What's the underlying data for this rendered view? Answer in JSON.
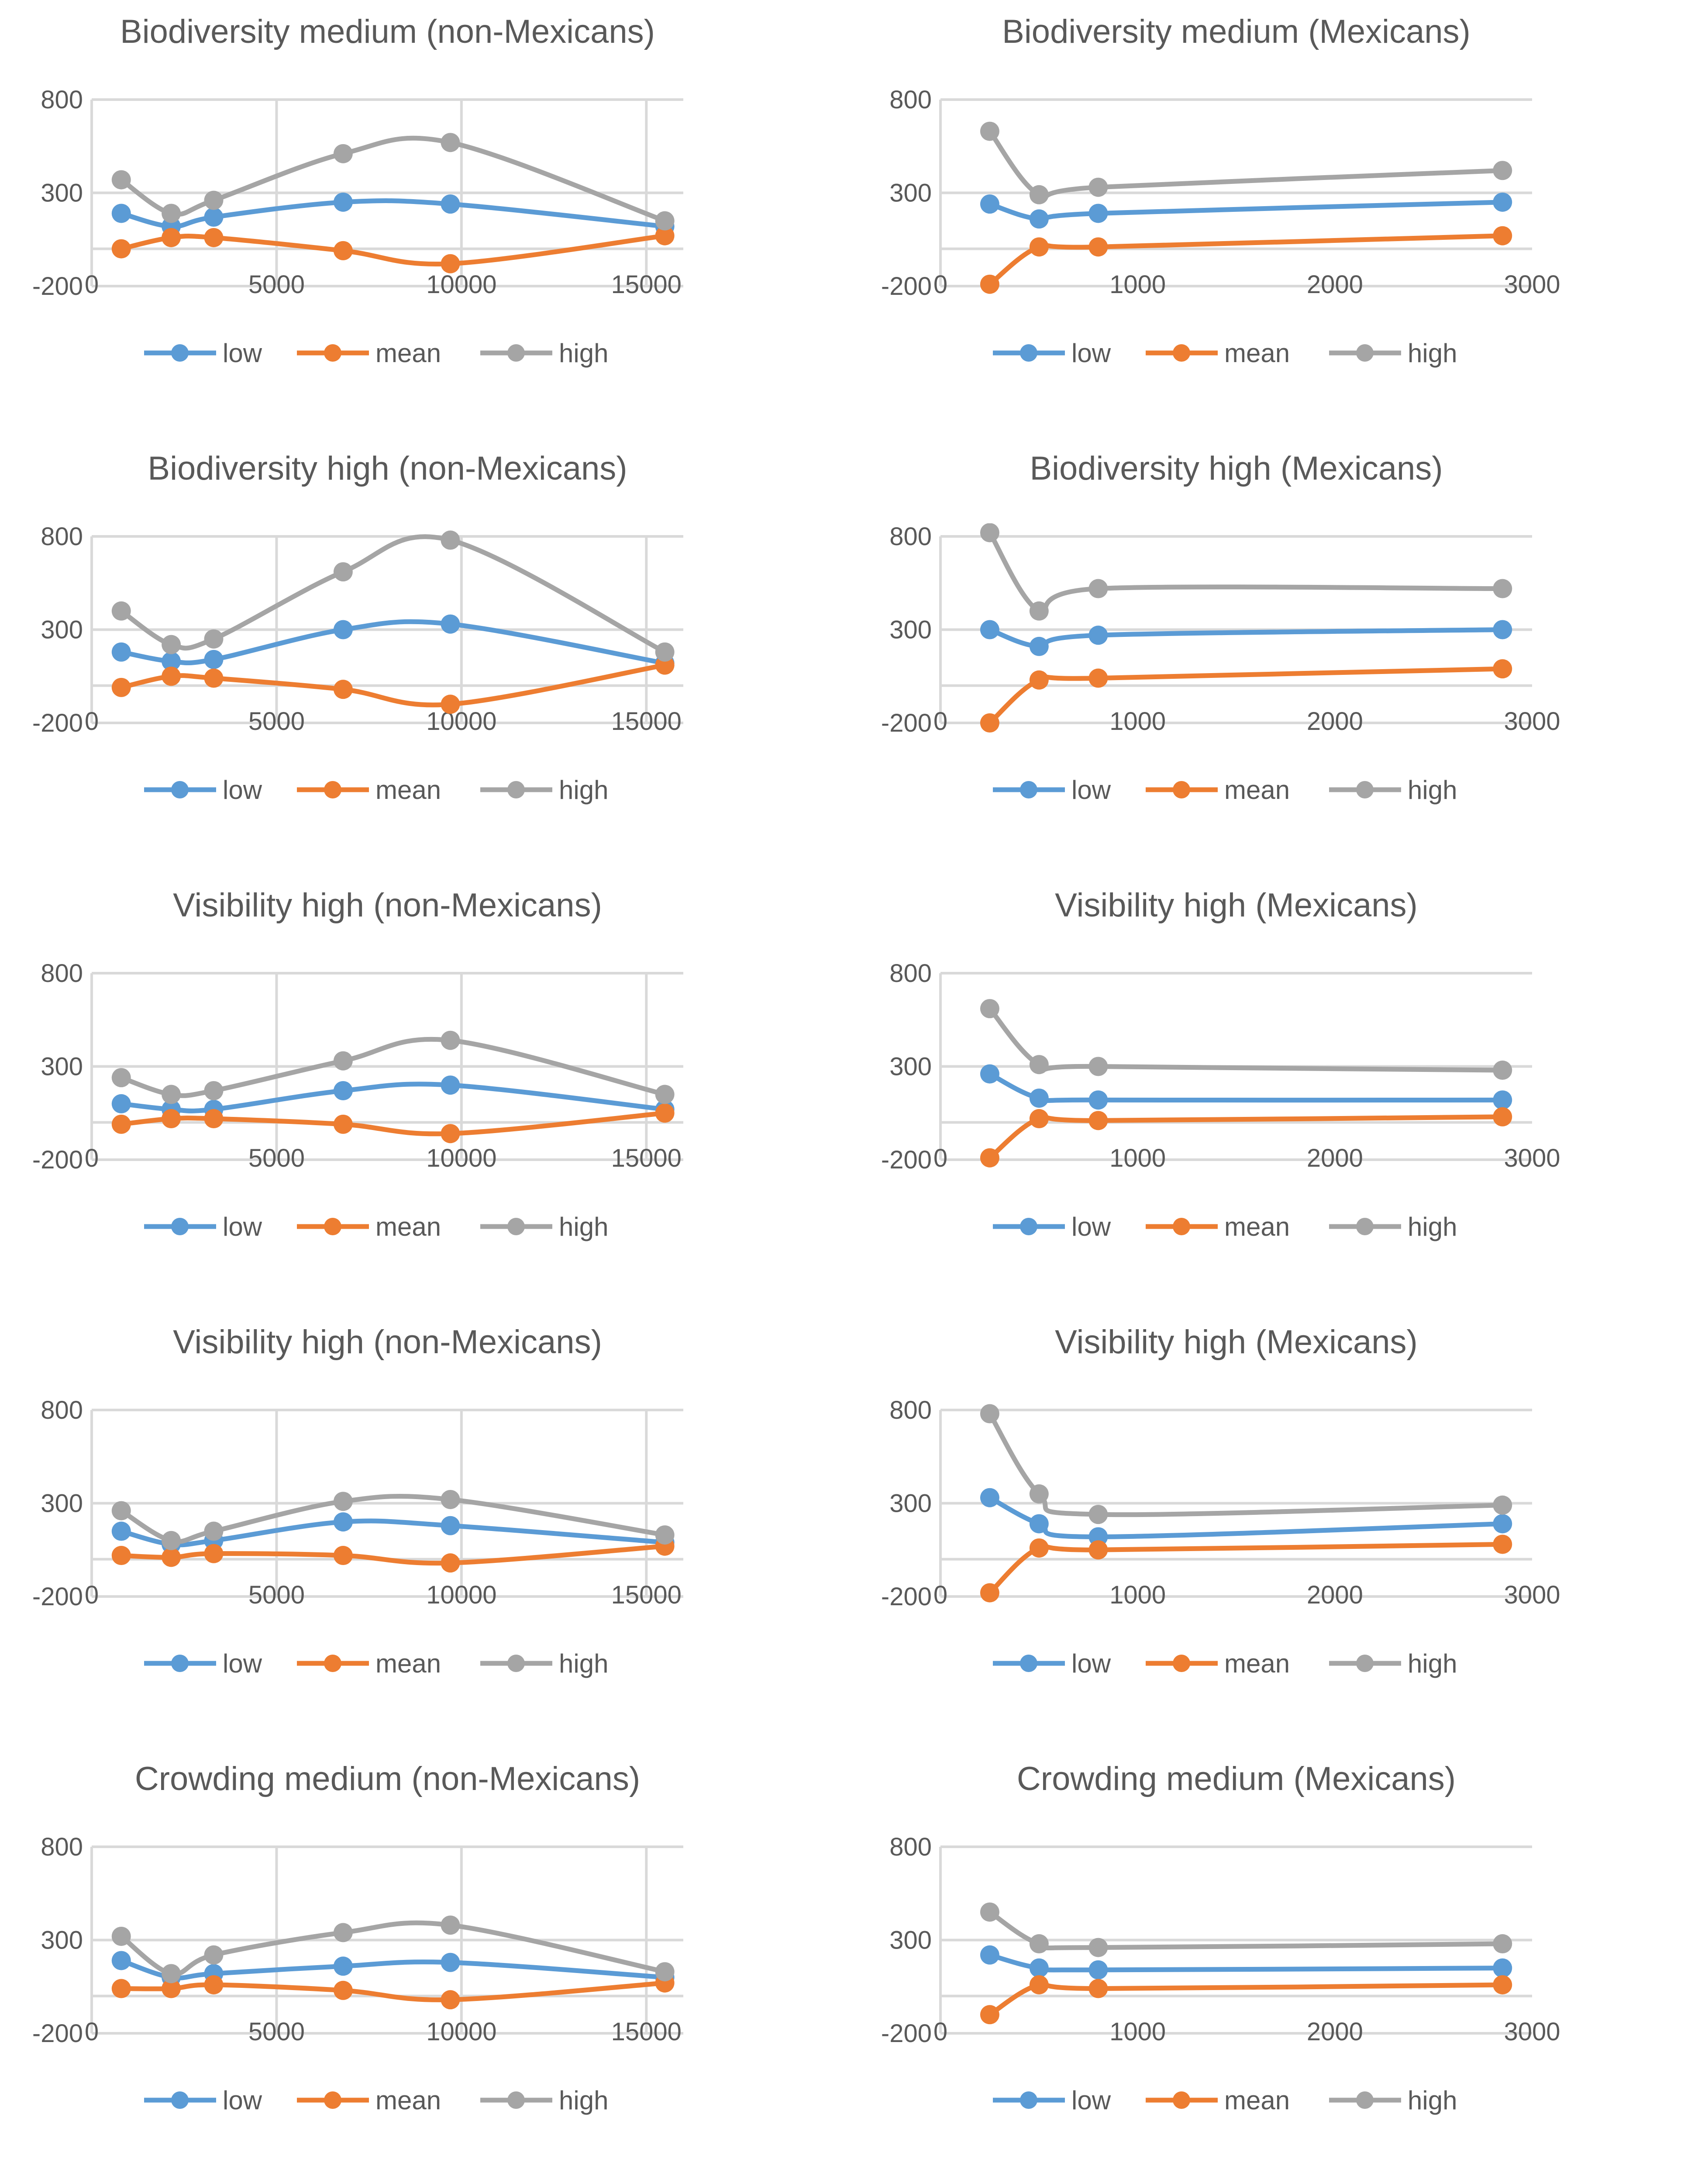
{
  "colors": {
    "low": "#5b9bd5",
    "mean": "#ed7d31",
    "high": "#a5a5a5",
    "grid": "#d9d9d9",
    "text": "#595959"
  },
  "chart_data": [
    {
      "type": "line",
      "smooth": true,
      "title": "Biodiversity medium (non-Mexicans)",
      "xlim": [
        0,
        16000
      ],
      "ylim": [
        -200,
        800
      ],
      "xticks": [
        0,
        5000,
        10000,
        15000
      ],
      "yticks": [
        -200,
        300,
        800
      ],
      "grid": "vertical and horizontal",
      "legend_position": "bottom",
      "x": [
        800,
        2150,
        3300,
        6800,
        9700,
        15500
      ],
      "series": [
        {
          "name": "low",
          "values": [
            190,
            120,
            170,
            250,
            240,
            120
          ]
        },
        {
          "name": "mean",
          "values": [
            0,
            60,
            60,
            -10,
            -80,
            70
          ]
        },
        {
          "name": "high",
          "values": [
            370,
            190,
            260,
            510,
            570,
            150
          ]
        }
      ]
    },
    {
      "type": "line",
      "smooth": true,
      "title": "Biodiversity medium (Mexicans)",
      "xlim": [
        0,
        3000
      ],
      "ylim": [
        -200,
        800
      ],
      "xticks": [
        0,
        1000,
        2000,
        3000
      ],
      "yticks": [
        -200,
        300,
        800
      ],
      "grid": "horizontal",
      "legend_position": "bottom",
      "x": [
        250,
        500,
        800,
        2850
      ],
      "series": [
        {
          "name": "low",
          "values": [
            240,
            160,
            190,
            250
          ]
        },
        {
          "name": "mean",
          "values": [
            -190,
            10,
            10,
            70
          ]
        },
        {
          "name": "high",
          "values": [
            630,
            290,
            330,
            420
          ]
        }
      ]
    },
    {
      "type": "line",
      "smooth": true,
      "title": "Biodiversity high (non-Mexicans)",
      "xlim": [
        0,
        16000
      ],
      "ylim": [
        -200,
        800
      ],
      "xticks": [
        0,
        5000,
        10000,
        15000
      ],
      "yticks": [
        -200,
        300,
        800
      ],
      "grid": "vertical and horizontal",
      "legend_position": "bottom",
      "x": [
        800,
        2150,
        3300,
        6800,
        9700,
        15500
      ],
      "series": [
        {
          "name": "low",
          "values": [
            180,
            130,
            140,
            300,
            330,
            120
          ]
        },
        {
          "name": "mean",
          "values": [
            -10,
            50,
            40,
            -20,
            -100,
            110
          ]
        },
        {
          "name": "high",
          "values": [
            400,
            220,
            250,
            610,
            780,
            180
          ]
        }
      ]
    },
    {
      "type": "line",
      "smooth": true,
      "title": "Biodiversity high (Mexicans)",
      "xlim": [
        0,
        3000
      ],
      "ylim": [
        -200,
        800
      ],
      "xticks": [
        0,
        1000,
        2000,
        3000
      ],
      "yticks": [
        -200,
        300,
        800
      ],
      "grid": "horizontal",
      "legend_position": "bottom",
      "x": [
        250,
        500,
        800,
        2850
      ],
      "series": [
        {
          "name": "low",
          "values": [
            300,
            210,
            270,
            300
          ]
        },
        {
          "name": "mean",
          "values": [
            -200,
            30,
            40,
            90
          ]
        },
        {
          "name": "high",
          "values": [
            820,
            400,
            520,
            520
          ]
        }
      ]
    },
    {
      "type": "line",
      "smooth": true,
      "title": "Visibility high (non-Mexicans)",
      "xlim": [
        0,
        16000
      ],
      "ylim": [
        -200,
        800
      ],
      "xticks": [
        0,
        5000,
        10000,
        15000
      ],
      "yticks": [
        -200,
        300,
        800
      ],
      "grid": "vertical and horizontal",
      "legend_position": "bottom",
      "x": [
        800,
        2150,
        3300,
        6800,
        9700,
        15500
      ],
      "series": [
        {
          "name": "low",
          "values": [
            100,
            70,
            70,
            170,
            200,
            70
          ]
        },
        {
          "name": "mean",
          "values": [
            -10,
            20,
            20,
            -10,
            -60,
            50
          ]
        },
        {
          "name": "high",
          "values": [
            240,
            150,
            170,
            330,
            440,
            150
          ]
        }
      ]
    },
    {
      "type": "line",
      "smooth": true,
      "title": "Visibility high (Mexicans)",
      "xlim": [
        0,
        3000
      ],
      "ylim": [
        -200,
        800
      ],
      "xticks": [
        0,
        1000,
        2000,
        3000
      ],
      "yticks": [
        -200,
        300,
        800
      ],
      "grid": "horizontal",
      "legend_position": "bottom",
      "x": [
        250,
        500,
        800,
        2850
      ],
      "series": [
        {
          "name": "low",
          "values": [
            260,
            130,
            120,
            120
          ]
        },
        {
          "name": "mean",
          "values": [
            -190,
            20,
            10,
            30
          ]
        },
        {
          "name": "high",
          "values": [
            610,
            310,
            300,
            280
          ]
        }
      ]
    },
    {
      "type": "line",
      "smooth": true,
      "title": "Visibility high (non-Mexicans)",
      "xlim": [
        0,
        16000
      ],
      "ylim": [
        -200,
        800
      ],
      "xticks": [
        0,
        5000,
        10000,
        15000
      ],
      "yticks": [
        -200,
        300,
        800
      ],
      "grid": "vertical and horizontal",
      "legend_position": "bottom",
      "x": [
        800,
        2150,
        3300,
        6800,
        9700,
        15500
      ],
      "series": [
        {
          "name": "low",
          "values": [
            150,
            80,
            100,
            200,
            180,
            90
          ]
        },
        {
          "name": "mean",
          "values": [
            20,
            10,
            30,
            20,
            -20,
            70
          ]
        },
        {
          "name": "high",
          "values": [
            260,
            100,
            150,
            310,
            320,
            130
          ]
        }
      ]
    },
    {
      "type": "line",
      "smooth": true,
      "title": "Visibility high (Mexicans)",
      "xlim": [
        0,
        3000
      ],
      "ylim": [
        -200,
        800
      ],
      "xticks": [
        0,
        1000,
        2000,
        3000
      ],
      "yticks": [
        -200,
        300,
        800
      ],
      "grid": "horizontal",
      "legend_position": "bottom",
      "x": [
        250,
        500,
        800,
        2850
      ],
      "series": [
        {
          "name": "low",
          "values": [
            330,
            190,
            120,
            190
          ]
        },
        {
          "name": "mean",
          "values": [
            -180,
            60,
            50,
            80
          ]
        },
        {
          "name": "high",
          "values": [
            780,
            350,
            240,
            290
          ]
        }
      ]
    },
    {
      "type": "line",
      "smooth": true,
      "title": "Crowding medium (non-Mexicans)",
      "xlim": [
        0,
        16000
      ],
      "ylim": [
        -200,
        800
      ],
      "xticks": [
        0,
        5000,
        10000,
        15000
      ],
      "yticks": [
        -200,
        300,
        800
      ],
      "grid": "vertical and horizontal",
      "legend_position": "bottom",
      "x": [
        800,
        2150,
        3300,
        6800,
        9700,
        15500
      ],
      "series": [
        {
          "name": "low",
          "values": [
            190,
            100,
            120,
            160,
            180,
            100
          ]
        },
        {
          "name": "mean",
          "values": [
            40,
            40,
            60,
            30,
            -20,
            70
          ]
        },
        {
          "name": "high",
          "values": [
            320,
            120,
            220,
            340,
            380,
            130
          ]
        }
      ]
    },
    {
      "type": "line",
      "smooth": true,
      "title": "Crowding medium (Mexicans)",
      "xlim": [
        0,
        3000
      ],
      "ylim": [
        -200,
        800
      ],
      "xticks": [
        0,
        1000,
        2000,
        3000
      ],
      "yticks": [
        -200,
        300,
        800
      ],
      "grid": "horizontal",
      "legend_position": "bottom",
      "x": [
        250,
        500,
        800,
        2850
      ],
      "series": [
        {
          "name": "low",
          "values": [
            220,
            150,
            140,
            150
          ]
        },
        {
          "name": "mean",
          "values": [
            -100,
            60,
            40,
            60
          ]
        },
        {
          "name": "high",
          "values": [
            450,
            280,
            260,
            280
          ]
        }
      ]
    }
  ]
}
